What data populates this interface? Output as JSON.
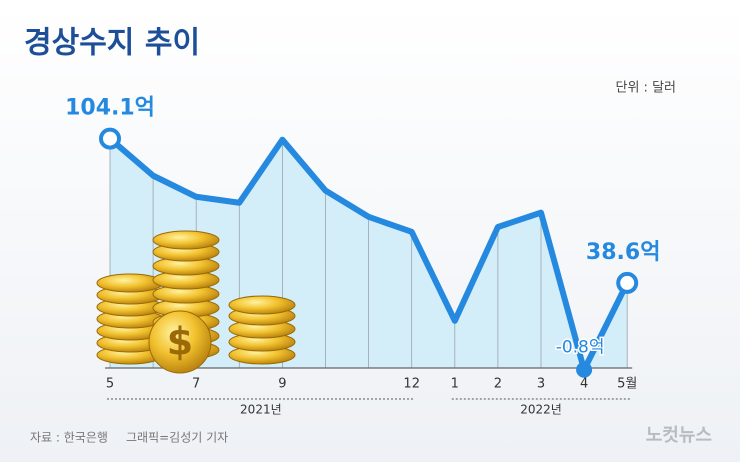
{
  "chart_data": {
    "type": "line",
    "title": "경상수지 추이",
    "unit_note": "단위 : 달러",
    "categories": [
      "5",
      null,
      "7",
      null,
      "9",
      null,
      null,
      "12",
      "1",
      "2",
      "3",
      "4",
      "5월"
    ],
    "groups": [
      {
        "label": "2021년",
        "from": 0,
        "to": 7
      },
      {
        "label": "2022년",
        "from": 8,
        "to": 12
      }
    ],
    "series": [
      {
        "name": "경상수지",
        "color": "#2589e0",
        "values": [
          104.1,
          87.3,
          77.7,
          75,
          103.6,
          80.5,
          68.6,
          61.8,
          21.4,
          64,
          70.5,
          -0.8,
          38.6
        ],
        "value_labels": [
          "104.1억",
          null,
          null,
          null,
          null,
          null,
          null,
          null,
          null,
          null,
          null,
          "-0.8억",
          "38.6억"
        ]
      }
    ],
    "ylim": [
      -5,
      113
    ],
    "source": "자료 : 한국은행",
    "credit": "그래픽=김성기 기자",
    "watermark": "노컷뉴스"
  }
}
